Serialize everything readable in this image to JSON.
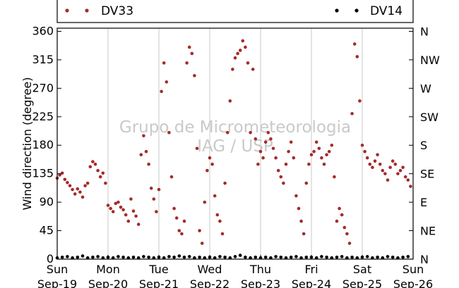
{
  "chart_data": {
    "type": "scatter",
    "ylabel": "Wind direction (degree)",
    "ylim": [
      0,
      365
    ],
    "yticks": [
      0,
      45,
      90,
      135,
      180,
      225,
      270,
      315,
      360
    ],
    "yticks_right": [
      {
        "value": 0,
        "label": "N"
      },
      {
        "value": 45,
        "label": "NE"
      },
      {
        "value": 90,
        "label": "E"
      },
      {
        "value": 135,
        "label": "SE"
      },
      {
        "value": 180,
        "label": "S"
      },
      {
        "value": 225,
        "label": "SW"
      },
      {
        "value": 270,
        "label": "W"
      },
      {
        "value": 315,
        "label": "NW"
      },
      {
        "value": 360,
        "label": "N"
      }
    ],
    "x_unit": "days since Sep-19 00:00",
    "xlim": [
      0,
      7
    ],
    "xticks": [
      {
        "x": 0,
        "line1": "Sun",
        "line2": "Sep-19"
      },
      {
        "x": 1,
        "line1": "Mon",
        "line2": "Sep-20"
      },
      {
        "x": 2,
        "line1": "Tue",
        "line2": "Sep-21"
      },
      {
        "x": 3,
        "line1": "Wed",
        "line2": "Sep-22"
      },
      {
        "x": 4,
        "line1": "Thu",
        "line2": "Sep-23"
      },
      {
        "x": 5,
        "line1": "Fri",
        "line2": "Sep-24"
      },
      {
        "x": 6,
        "line1": "Sat",
        "line2": "Sep-25"
      },
      {
        "x": 7,
        "line1": "Sun",
        "line2": "Sep-26"
      }
    ],
    "grid": "vertical",
    "legend_placement": "top",
    "watermark": [
      "Grupo de Micrometeorologia",
      "IAG / USP"
    ],
    "series": [
      {
        "name": "DV33",
        "color": "#a52a2a",
        "points": [
          [
            0.0,
            128
          ],
          [
            0.05,
            133
          ],
          [
            0.1,
            136
          ],
          [
            0.15,
            126
          ],
          [
            0.2,
            121
          ],
          [
            0.25,
            116
          ],
          [
            0.3,
            110
          ],
          [
            0.35,
            103
          ],
          [
            0.4,
            111
          ],
          [
            0.45,
            106
          ],
          [
            0.5,
            98
          ],
          [
            0.55,
            116
          ],
          [
            0.6,
            120
          ],
          [
            0.65,
            146
          ],
          [
            0.7,
            154
          ],
          [
            0.75,
            150
          ],
          [
            0.8,
            140
          ],
          [
            0.85,
            130
          ],
          [
            0.9,
            136
          ],
          [
            0.95,
            120
          ],
          [
            1.0,
            85
          ],
          [
            1.05,
            80
          ],
          [
            1.1,
            75
          ],
          [
            1.15,
            88
          ],
          [
            1.2,
            90
          ],
          [
            1.25,
            82
          ],
          [
            1.3,
            78
          ],
          [
            1.35,
            70
          ],
          [
            1.4,
            60
          ],
          [
            1.45,
            95
          ],
          [
            1.5,
            76
          ],
          [
            1.55,
            68
          ],
          [
            1.6,
            55
          ],
          [
            1.65,
            165
          ],
          [
            1.7,
            195
          ],
          [
            1.75,
            170
          ],
          [
            1.8,
            150
          ],
          [
            1.85,
            112
          ],
          [
            1.9,
            95
          ],
          [
            1.95,
            75
          ],
          [
            2.0,
            110
          ],
          [
            2.05,
            265
          ],
          [
            2.1,
            310
          ],
          [
            2.15,
            280
          ],
          [
            2.2,
            200
          ],
          [
            2.25,
            130
          ],
          [
            2.3,
            80
          ],
          [
            2.35,
            65
          ],
          [
            2.4,
            45
          ],
          [
            2.45,
            40
          ],
          [
            2.5,
            60
          ],
          [
            2.55,
            310
          ],
          [
            2.6,
            335
          ],
          [
            2.65,
            325
          ],
          [
            2.7,
            290
          ],
          [
            2.75,
            175
          ],
          [
            2.8,
            45
          ],
          [
            2.85,
            25
          ],
          [
            2.9,
            90
          ],
          [
            2.95,
            140
          ],
          [
            3.0,
            160
          ],
          [
            3.05,
            150
          ],
          [
            3.1,
            100
          ],
          [
            3.15,
            70
          ],
          [
            3.2,
            60
          ],
          [
            3.25,
            40
          ],
          [
            3.3,
            120
          ],
          [
            3.35,
            200
          ],
          [
            3.4,
            250
          ],
          [
            3.45,
            300
          ],
          [
            3.5,
            318
          ],
          [
            3.55,
            325
          ],
          [
            3.6,
            330
          ],
          [
            3.65,
            345
          ],
          [
            3.7,
            335
          ],
          [
            3.75,
            310
          ],
          [
            3.8,
            200
          ],
          [
            3.85,
            300
          ],
          [
            3.9,
            190
          ],
          [
            3.95,
            150
          ],
          [
            4.0,
            170
          ],
          [
            4.05,
            160
          ],
          [
            4.1,
            185
          ],
          [
            4.15,
            200
          ],
          [
            4.2,
            190
          ],
          [
            4.25,
            175
          ],
          [
            4.3,
            160
          ],
          [
            4.35,
            140
          ],
          [
            4.4,
            130
          ],
          [
            4.45,
            120
          ],
          [
            4.5,
            150
          ],
          [
            4.55,
            170
          ],
          [
            4.6,
            185
          ],
          [
            4.65,
            160
          ],
          [
            4.7,
            100
          ],
          [
            4.75,
            80
          ],
          [
            4.8,
            60
          ],
          [
            4.85,
            40
          ],
          [
            4.9,
            120
          ],
          [
            4.95,
            150
          ],
          [
            5.0,
            165
          ],
          [
            5.05,
            170
          ],
          [
            5.1,
            185
          ],
          [
            5.15,
            175
          ],
          [
            5.2,
            160
          ],
          [
            5.25,
            150
          ],
          [
            5.3,
            165
          ],
          [
            5.35,
            170
          ],
          [
            5.4,
            180
          ],
          [
            5.45,
            130
          ],
          [
            5.5,
            60
          ],
          [
            5.55,
            80
          ],
          [
            5.6,
            70
          ],
          [
            5.65,
            50
          ],
          [
            5.7,
            40
          ],
          [
            5.75,
            25
          ],
          [
            5.8,
            230
          ],
          [
            5.85,
            340
          ],
          [
            5.9,
            320
          ],
          [
            5.95,
            250
          ],
          [
            6.0,
            180
          ],
          [
            6.05,
            170
          ],
          [
            6.1,
            160
          ],
          [
            6.15,
            150
          ],
          [
            6.2,
            145
          ],
          [
            6.25,
            155
          ],
          [
            6.3,
            165
          ],
          [
            6.35,
            150
          ],
          [
            6.4,
            140
          ],
          [
            6.45,
            135
          ],
          [
            6.5,
            125
          ],
          [
            6.55,
            145
          ],
          [
            6.6,
            155
          ],
          [
            6.65,
            150
          ],
          [
            6.7,
            135
          ],
          [
            6.75,
            140
          ],
          [
            6.8,
            145
          ],
          [
            6.85,
            130
          ],
          [
            6.9,
            125
          ],
          [
            6.95,
            115
          ]
        ]
      },
      {
        "name": "DV14",
        "color": "#000000",
        "points": [
          [
            0.0,
            2
          ],
          [
            0.1,
            3
          ],
          [
            0.2,
            4
          ],
          [
            0.3,
            2
          ],
          [
            0.4,
            3
          ],
          [
            0.5,
            5
          ],
          [
            0.6,
            2
          ],
          [
            0.7,
            3
          ],
          [
            0.8,
            4
          ],
          [
            0.9,
            2
          ],
          [
            1.0,
            3
          ],
          [
            1.1,
            2
          ],
          [
            1.2,
            4
          ],
          [
            1.3,
            3
          ],
          [
            1.4,
            2
          ],
          [
            1.5,
            3
          ],
          [
            1.6,
            2
          ],
          [
            1.7,
            4
          ],
          [
            1.8,
            3
          ],
          [
            1.9,
            2
          ],
          [
            2.0,
            3
          ],
          [
            2.1,
            2
          ],
          [
            2.2,
            4
          ],
          [
            2.3,
            3
          ],
          [
            2.4,
            5
          ],
          [
            2.5,
            3
          ],
          [
            2.6,
            4
          ],
          [
            2.7,
            2
          ],
          [
            2.8,
            3
          ],
          [
            2.9,
            2
          ],
          [
            3.0,
            3
          ],
          [
            3.1,
            2
          ],
          [
            3.2,
            4
          ],
          [
            3.3,
            3
          ],
          [
            3.4,
            2
          ],
          [
            3.5,
            4
          ],
          [
            3.6,
            6
          ],
          [
            3.7,
            3
          ],
          [
            3.8,
            2
          ],
          [
            3.9,
            3
          ],
          [
            4.0,
            2
          ],
          [
            4.1,
            3
          ],
          [
            4.2,
            2
          ],
          [
            4.3,
            4
          ],
          [
            4.4,
            3
          ],
          [
            4.5,
            2
          ],
          [
            4.6,
            3
          ],
          [
            4.7,
            4
          ],
          [
            4.8,
            2
          ],
          [
            4.9,
            3
          ],
          [
            5.0,
            3
          ],
          [
            5.1,
            2
          ],
          [
            5.2,
            4
          ],
          [
            5.3,
            3
          ],
          [
            5.4,
            2
          ],
          [
            5.5,
            3
          ],
          [
            5.6,
            4
          ],
          [
            5.7,
            2
          ],
          [
            5.8,
            3
          ],
          [
            5.9,
            2
          ],
          [
            6.0,
            3
          ],
          [
            6.1,
            4
          ],
          [
            6.2,
            2
          ],
          [
            6.3,
            3
          ],
          [
            6.4,
            2
          ],
          [
            6.5,
            4
          ],
          [
            6.6,
            3
          ],
          [
            6.7,
            2
          ],
          [
            6.8,
            3
          ],
          [
            6.9,
            4
          ]
        ]
      }
    ]
  }
}
